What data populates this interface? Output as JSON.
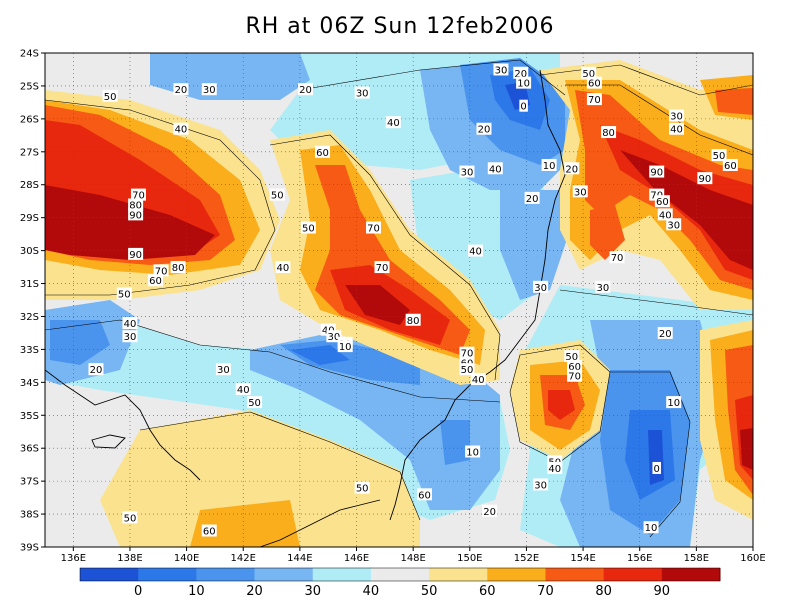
{
  "title": "RH at 06Z Sun 12feb2006",
  "chart_data": {
    "type": "contour-map",
    "variable": "RH",
    "lat_ticks": [
      "24S",
      "25S",
      "26S",
      "27S",
      "28S",
      "29S",
      "30S",
      "31S",
      "32S",
      "33S",
      "34S",
      "35S",
      "36S",
      "37S",
      "38S",
      "39S"
    ],
    "lon_ticks": [
      "136E",
      "138E",
      "140E",
      "142E",
      "144E",
      "146E",
      "148E",
      "150E",
      "152E",
      "154E",
      "156E",
      "158E",
      "160E"
    ],
    "xlim": [
      135,
      160
    ],
    "ylim": [
      -39,
      -24
    ],
    "grid": true,
    "color_levels": [
      0,
      10,
      20,
      30,
      40,
      50,
      60,
      70,
      80,
      90
    ],
    "colorbar_labels": [
      "0",
      "10",
      "20",
      "30",
      "40",
      "50",
      "60",
      "70",
      "80",
      "90"
    ],
    "colors": [
      "#1c52d6",
      "#2c78e8",
      "#4a94ee",
      "#77b6f2",
      "#b0ecf6",
      "#ebebeb",
      "#fbe28e",
      "#fbae1c",
      "#f75a14",
      "#e8280e",
      "#b20a0a"
    ],
    "contour_labels": [
      {
        "text": "50",
        "lon": 137.3,
        "lat": -25.3
      },
      {
        "text": "20",
        "lon": 139.8,
        "lat": -25.1
      },
      {
        "text": "30",
        "lon": 140.8,
        "lat": -25.1
      },
      {
        "text": "40",
        "lon": 139.8,
        "lat": -26.3
      },
      {
        "text": "20",
        "lon": 144.2,
        "lat": -25.1
      },
      {
        "text": "30",
        "lon": 146.2,
        "lat": -25.2
      },
      {
        "text": "40",
        "lon": 147.3,
        "lat": -26.1
      },
      {
        "text": "20",
        "lon": 150.5,
        "lat": -26.3
      },
      {
        "text": "30",
        "lon": 151.1,
        "lat": -24.5
      },
      {
        "text": "20",
        "lon": 151.8,
        "lat": -24.6
      },
      {
        "text": "10",
        "lon": 151.9,
        "lat": -24.9
      },
      {
        "text": "0",
        "lon": 151.9,
        "lat": -25.6
      },
      {
        "text": "50",
        "lon": 154.2,
        "lat": -24.6
      },
      {
        "text": "60",
        "lon": 154.4,
        "lat": -24.9
      },
      {
        "text": "70",
        "lon": 154.4,
        "lat": -25.4
      },
      {
        "text": "80",
        "lon": 154.9,
        "lat": -26.4
      },
      {
        "text": "30",
        "lon": 157.3,
        "lat": -25.9
      },
      {
        "text": "40",
        "lon": 157.3,
        "lat": -26.3
      },
      {
        "text": "50",
        "lon": 158.8,
        "lat": -27.1
      },
      {
        "text": "60",
        "lon": 159.2,
        "lat": -27.4
      },
      {
        "text": "60",
        "lon": 144.8,
        "lat": -27.0
      },
      {
        "text": "50",
        "lon": 143.2,
        "lat": -28.3
      },
      {
        "text": "30",
        "lon": 149.9,
        "lat": -27.6
      },
      {
        "text": "40",
        "lon": 150.9,
        "lat": -27.5
      },
      {
        "text": "10",
        "lon": 152.8,
        "lat": -27.4
      },
      {
        "text": "20",
        "lon": 153.6,
        "lat": -27.5
      },
      {
        "text": "30",
        "lon": 153.9,
        "lat": -28.2
      },
      {
        "text": "20",
        "lon": 152.2,
        "lat": -28.4
      },
      {
        "text": "90",
        "lon": 156.6,
        "lat": -27.6
      },
      {
        "text": "90",
        "lon": 158.3,
        "lat": -27.8
      },
      {
        "text": "70",
        "lon": 156.6,
        "lat": -28.3
      },
      {
        "text": "60",
        "lon": 156.8,
        "lat": -28.5
      },
      {
        "text": "40",
        "lon": 156.9,
        "lat": -28.9
      },
      {
        "text": "30",
        "lon": 157.2,
        "lat": -29.2
      },
      {
        "text": "70",
        "lon": 155.2,
        "lat": -30.2
      },
      {
        "text": "70",
        "lon": 138.3,
        "lat": -28.3
      },
      {
        "text": "80",
        "lon": 138.2,
        "lat": -28.6
      },
      {
        "text": "90",
        "lon": 138.2,
        "lat": -28.9
      },
      {
        "text": "90",
        "lon": 138.2,
        "lat": -30.1
      },
      {
        "text": "80",
        "lon": 139.7,
        "lat": -30.5
      },
      {
        "text": "70",
        "lon": 139.1,
        "lat": -30.6
      },
      {
        "text": "60",
        "lon": 138.9,
        "lat": -30.9
      },
      {
        "text": "50",
        "lon": 137.8,
        "lat": -31.3
      },
      {
        "text": "50",
        "lon": 144.3,
        "lat": -29.3
      },
      {
        "text": "70",
        "lon": 146.6,
        "lat": -29.3
      },
      {
        "text": "40",
        "lon": 143.4,
        "lat": -30.5
      },
      {
        "text": "70",
        "lon": 146.9,
        "lat": -30.5
      },
      {
        "text": "40",
        "lon": 150.2,
        "lat": -30.0
      },
      {
        "text": "30",
        "lon": 152.5,
        "lat": -31.1
      },
      {
        "text": "30",
        "lon": 154.7,
        "lat": -31.1
      },
      {
        "text": "40",
        "lon": 138.0,
        "lat": -32.2
      },
      {
        "text": "30",
        "lon": 138.0,
        "lat": -32.6
      },
      {
        "text": "80",
        "lon": 148.0,
        "lat": -32.1
      },
      {
        "text": "40",
        "lon": 145.0,
        "lat": -32.4
      },
      {
        "text": "30",
        "lon": 145.2,
        "lat": -32.6
      },
      {
        "text": "20",
        "lon": 145.6,
        "lat": -32.8
      },
      {
        "text": "10",
        "lon": 145.6,
        "lat": -32.9
      },
      {
        "text": "70",
        "lon": 149.9,
        "lat": -33.1
      },
      {
        "text": "60",
        "lon": 149.9,
        "lat": -33.4
      },
      {
        "text": "50",
        "lon": 149.9,
        "lat": -33.6
      },
      {
        "text": "40",
        "lon": 150.3,
        "lat": -33.9
      },
      {
        "text": "20",
        "lon": 156.9,
        "lat": -32.5
      },
      {
        "text": "20",
        "lon": 136.8,
        "lat": -33.6
      },
      {
        "text": "30",
        "lon": 141.3,
        "lat": -33.6
      },
      {
        "text": "50",
        "lon": 153.6,
        "lat": -33.2
      },
      {
        "text": "60",
        "lon": 153.7,
        "lat": -33.5
      },
      {
        "text": "70",
        "lon": 153.7,
        "lat": -33.8
      },
      {
        "text": "40",
        "lon": 142.0,
        "lat": -34.2
      },
      {
        "text": "50",
        "lon": 142.4,
        "lat": -34.6
      },
      {
        "text": "10",
        "lon": 157.2,
        "lat": -34.6
      },
      {
        "text": "10",
        "lon": 150.1,
        "lat": -36.1
      },
      {
        "text": "50",
        "lon": 153.0,
        "lat": -36.4
      },
      {
        "text": "40",
        "lon": 153.0,
        "lat": -36.6
      },
      {
        "text": "0",
        "lon": 156.6,
        "lat": -36.6
      },
      {
        "text": "30",
        "lon": 152.5,
        "lat": -37.1
      },
      {
        "text": "50",
        "lon": 146.2,
        "lat": -37.2
      },
      {
        "text": "60",
        "lon": 148.4,
        "lat": -37.4
      },
      {
        "text": "20",
        "lon": 150.7,
        "lat": -37.9
      },
      {
        "text": "50",
        "lon": 138.0,
        "lat": -38.1
      },
      {
        "text": "60",
        "lon": 140.8,
        "lat": -38.5
      },
      {
        "text": "10",
        "lon": 156.4,
        "lat": -38.4
      }
    ]
  }
}
